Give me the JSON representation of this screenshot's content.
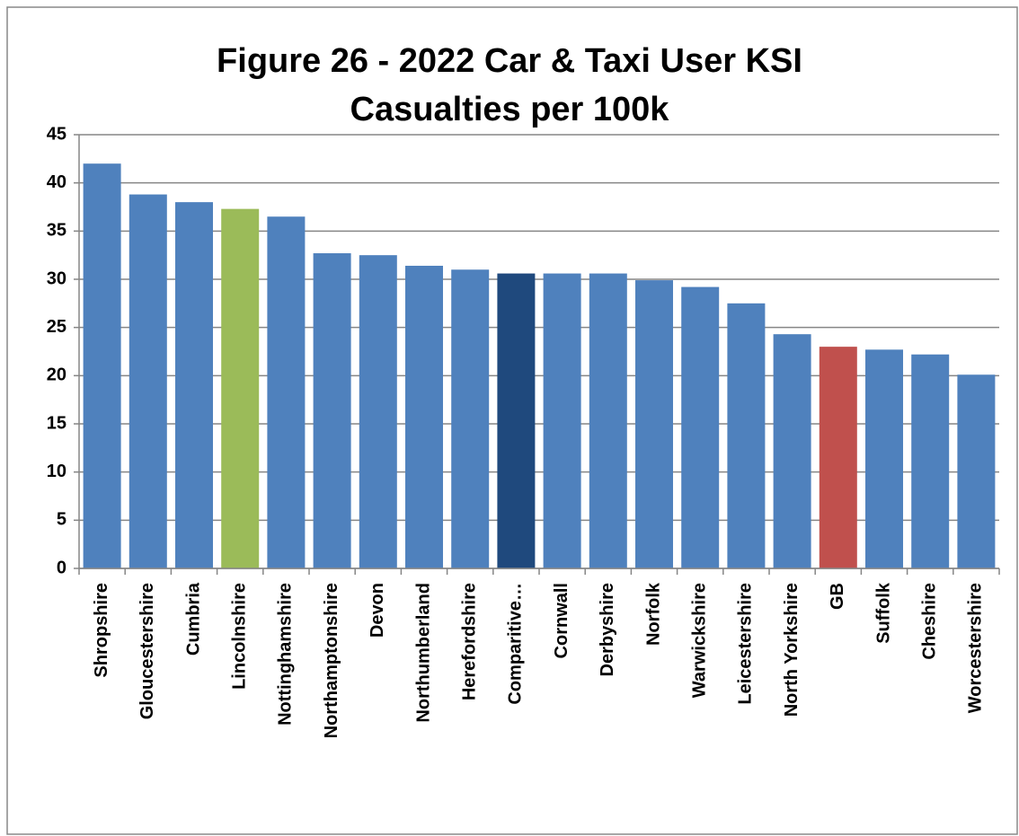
{
  "chart_data": {
    "type": "bar",
    "title": [
      "Figure 26 - 2022 Car & Taxi User KSI",
      "Casualties per 100k"
    ],
    "categories": [
      "Shropshire",
      "Gloucestershire",
      "Cumbria",
      "Lincolnshire",
      "Nottinghamshire",
      "Northamptonshire",
      "Devon",
      "Northumberland",
      "Herefordshire",
      "Comparitive…",
      "Cornwall",
      "Derbyshire",
      "Norfolk",
      "Warwickshire",
      "Leicestershire",
      "North Yorkshire",
      "GB",
      "Suffolk",
      "Cheshire",
      "Worcestershire"
    ],
    "values": [
      42.0,
      38.8,
      38.0,
      37.3,
      36.5,
      32.7,
      32.5,
      31.4,
      31.0,
      30.6,
      30.6,
      30.6,
      29.9,
      29.2,
      27.5,
      24.3,
      23.0,
      22.7,
      22.2,
      20.1
    ],
    "colors": [
      "#4f81bd",
      "#4f81bd",
      "#4f81bd",
      "#9bbb59",
      "#4f81bd",
      "#4f81bd",
      "#4f81bd",
      "#4f81bd",
      "#4f81bd",
      "#1f497d",
      "#4f81bd",
      "#4f81bd",
      "#4f81bd",
      "#4f81bd",
      "#4f81bd",
      "#4f81bd",
      "#c0504d",
      "#4f81bd",
      "#4f81bd",
      "#4f81bd"
    ],
    "ylim": [
      0,
      45
    ],
    "yticks": [
      0,
      5,
      10,
      15,
      20,
      25,
      30,
      35,
      40,
      45
    ],
    "grid": true
  }
}
